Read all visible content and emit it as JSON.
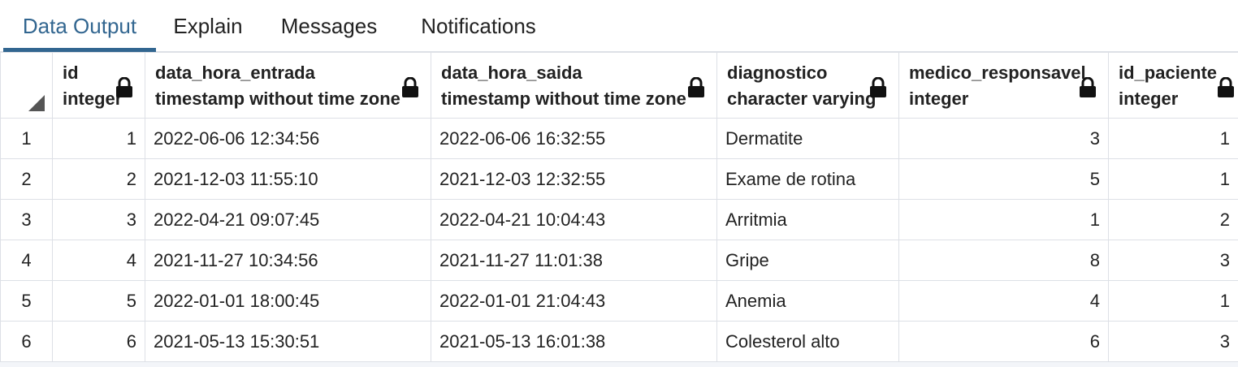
{
  "tabs": [
    {
      "label": "Data Output",
      "active": true
    },
    {
      "label": "Explain",
      "active": false
    },
    {
      "label": "Messages",
      "active": false
    },
    {
      "label": "Notifications",
      "active": false
    }
  ],
  "columns": [
    {
      "name": "id",
      "type": "integer"
    },
    {
      "name": "data_hora_entrada",
      "type": "timestamp without time zone"
    },
    {
      "name": "data_hora_saida",
      "type": "timestamp without time zone"
    },
    {
      "name": "diagnostico",
      "type": "character varying"
    },
    {
      "name": "medico_responsavel",
      "type": "integer"
    },
    {
      "name": "id_paciente",
      "type": "integer"
    }
  ],
  "rows": [
    {
      "num": "1",
      "cells": [
        "1",
        "2022-06-06 12:34:56",
        "2022-06-06 16:32:55",
        "Dermatite",
        "3",
        "1"
      ]
    },
    {
      "num": "2",
      "cells": [
        "2",
        "2021-12-03 11:55:10",
        "2021-12-03 12:32:55",
        "Exame de rotina",
        "5",
        "1"
      ]
    },
    {
      "num": "3",
      "cells": [
        "3",
        "2022-04-21 09:07:45",
        "2022-04-21 10:04:43",
        "Arritmia",
        "1",
        "2"
      ]
    },
    {
      "num": "4",
      "cells": [
        "4",
        "2021-11-27 10:34:56",
        "2021-11-27 11:01:38",
        "Gripe",
        "8",
        "3"
      ]
    },
    {
      "num": "5",
      "cells": [
        "5",
        "2022-01-01 18:00:45",
        "2022-01-01 21:04:43",
        "Anemia",
        "4",
        "1"
      ]
    },
    {
      "num": "6",
      "cells": [
        "6",
        "2021-05-13 15:30:51",
        "2021-05-13 16:01:38",
        "Colesterol alto",
        "6",
        "3"
      ]
    }
  ],
  "colors": {
    "accent": "#326690",
    "grid_line": "#dde0e6",
    "text": "#222222"
  }
}
